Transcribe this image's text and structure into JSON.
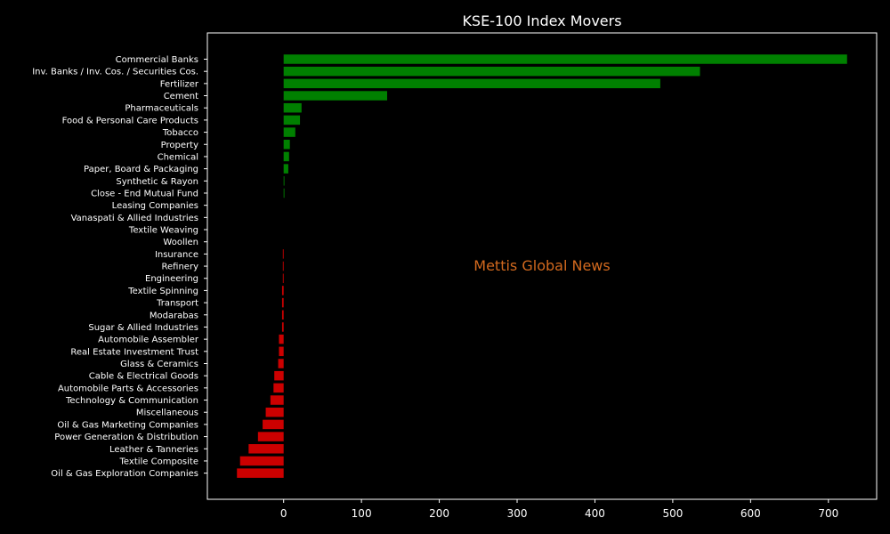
{
  "chart_data": {
    "type": "bar",
    "orientation": "horizontal",
    "title": "KSE-100 Index Movers",
    "watermark": "Mettis Global News",
    "xlabel": "",
    "ylabel": "",
    "xlim": [
      -98,
      762
    ],
    "xticks": [
      0,
      100,
      200,
      300,
      400,
      500,
      600,
      700
    ],
    "grid": false,
    "colors": {
      "positive": "#008000",
      "negative": "#cc0000",
      "background": "#000000",
      "text": "#ffffff",
      "watermark": "#d2691e"
    },
    "categories": [
      "Commercial Banks",
      "Inv. Banks / Inv. Cos. / Securities Cos.",
      "Fertilizer",
      "Cement",
      "Pharmaceuticals",
      "Food & Personal Care Products",
      "Tobacco",
      "Property",
      "Chemical",
      "Paper, Board & Packaging",
      "Synthetic & Rayon",
      "Close - End Mutual Fund",
      "Leasing Companies",
      "Vanaspati & Allied Industries",
      "Textile Weaving",
      "Woollen",
      "Insurance",
      "Refinery",
      "Engineering",
      "Textile Spinning",
      "Transport",
      "Modarabas",
      "Sugar & Allied Industries",
      "Automobile Assembler",
      "Real Estate Investment Trust",
      "Glass & Ceramics",
      "Cable & Electrical Goods",
      "Automobile Parts & Accessories",
      "Technology & Communication",
      "Miscellaneous",
      "Oil & Gas Marketing Companies",
      "Power Generation & Distribution",
      "Leather & Tanneries",
      "Textile Composite",
      "Oil & Gas Exploration Companies"
    ],
    "values": [
      724,
      535,
      484,
      133,
      23,
      21,
      15,
      8,
      7,
      6,
      1,
      1,
      0,
      0,
      0,
      0,
      -1,
      -1,
      -1,
      -2,
      -2,
      -2,
      -2,
      -6,
      -6,
      -7,
      -12,
      -13,
      -17,
      -23,
      -27,
      -33,
      -45,
      -56,
      -60
    ]
  }
}
